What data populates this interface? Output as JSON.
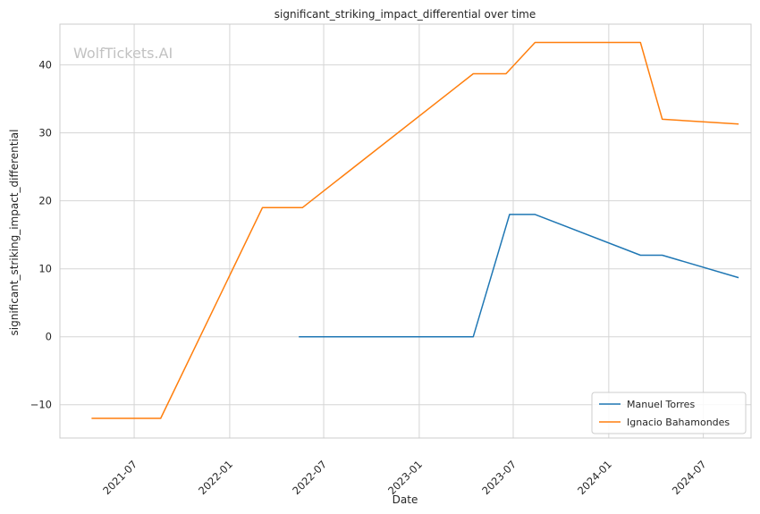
{
  "watermark": "WolfTickets.AI",
  "chart_data": {
    "type": "line",
    "title": "significant_striking_impact_differential over time",
    "xlabel": "Date",
    "ylabel": "significant_striking_impact_differential",
    "x_ticks": [
      "2021-07",
      "2022-01",
      "2022-07",
      "2023-01",
      "2023-07",
      "2024-01",
      "2024-07"
    ],
    "y_ticks": [
      -10,
      0,
      10,
      20,
      30,
      40
    ],
    "xlim": [
      "2021-02-08",
      "2024-10-01"
    ],
    "ylim": [
      -14.9,
      46.0
    ],
    "grid": true,
    "legend_position": "lower-right",
    "series": [
      {
        "name": "Manuel Torres",
        "color": "#1f77b4",
        "points": [
          {
            "x": "2022-05-14",
            "y": 0
          },
          {
            "x": "2023-04-15",
            "y": 0
          },
          {
            "x": "2023-06-24",
            "y": 18
          },
          {
            "x": "2023-08-12",
            "y": 18
          },
          {
            "x": "2024-03-02",
            "y": 12
          },
          {
            "x": "2024-04-13",
            "y": 12
          },
          {
            "x": "2024-09-07",
            "y": 8.7
          }
        ]
      },
      {
        "name": "Ignacio Bahamondes",
        "color": "#ff7f0e",
        "points": [
          {
            "x": "2021-04-10",
            "y": -12
          },
          {
            "x": "2021-08-21",
            "y": -12
          },
          {
            "x": "2022-03-05",
            "y": 19
          },
          {
            "x": "2022-05-21",
            "y": 19
          },
          {
            "x": "2023-04-15",
            "y": 38.7
          },
          {
            "x": "2023-06-17",
            "y": 38.7
          },
          {
            "x": "2023-08-12",
            "y": 43.3
          },
          {
            "x": "2024-03-02",
            "y": 43.3
          },
          {
            "x": "2024-04-13",
            "y": 32
          },
          {
            "x": "2024-09-07",
            "y": 31.3
          }
        ]
      }
    ]
  }
}
